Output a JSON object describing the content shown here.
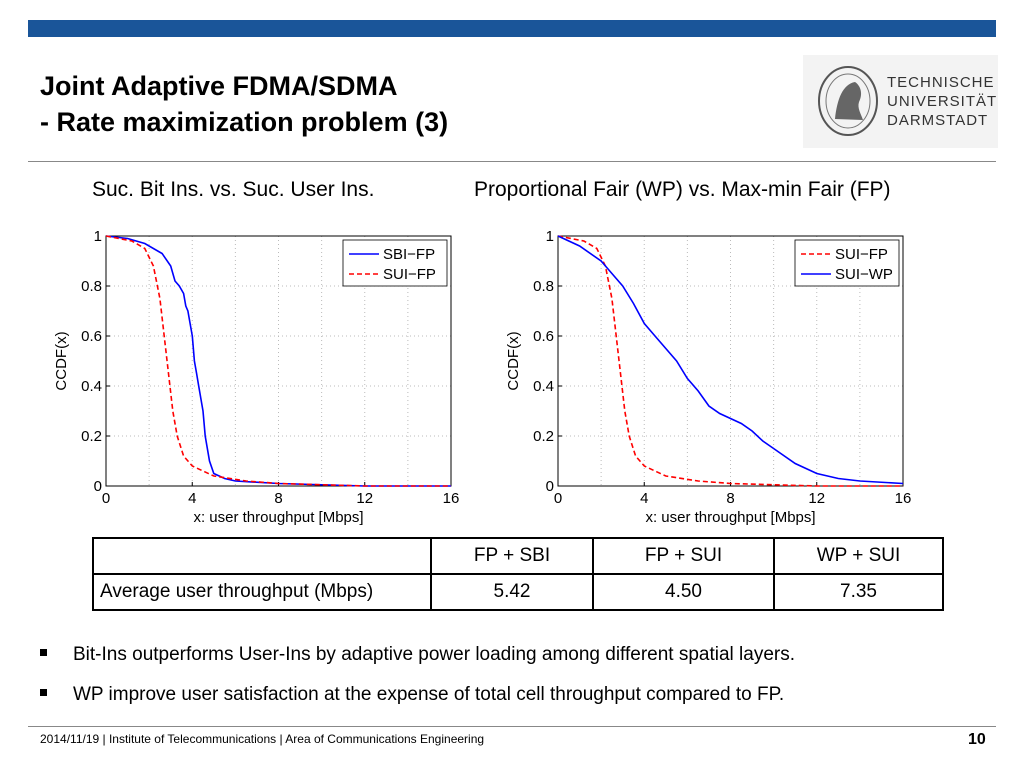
{
  "colors": {
    "header_bar": "#1a5599",
    "blue": "#0000ff",
    "red": "#ff0000"
  },
  "title": {
    "line1": "Joint Adaptive FDMA/SDMA",
    "line2": "- Rate maximization problem (3)"
  },
  "logo": {
    "line1": "TECHNISCHE",
    "line2": "UNIVERSITÄT",
    "line3": "DARMSTADT"
  },
  "subtitles": {
    "left": "Suc. Bit Ins. vs. Suc. User Ins.",
    "right": "Proportional Fair (WP) vs. Max-min Fair (FP)"
  },
  "chart_data": [
    {
      "type": "line",
      "xlabel": "x: user throughput [Mbps]",
      "ylabel": "CCDF(x)",
      "xlim": [
        0,
        16
      ],
      "ylim": [
        0,
        1
      ],
      "xticks": [
        "0",
        "4",
        "8",
        "12",
        "16"
      ],
      "yticks": [
        "0",
        "0.2",
        "0.4",
        "0.6",
        "0.8",
        "1"
      ],
      "grid": true,
      "legend_position": "top-right",
      "series": [
        {
          "name": "SBI−FP",
          "color": "#0000ff",
          "style": "solid",
          "points": [
            [
              0,
              1
            ],
            [
              1,
              0.99
            ],
            [
              1.8,
              0.97
            ],
            [
              2.6,
              0.93
            ],
            [
              3.0,
              0.88
            ],
            [
              3.2,
              0.82
            ],
            [
              3.4,
              0.8
            ],
            [
              3.6,
              0.77
            ],
            [
              3.7,
              0.72
            ],
            [
              3.8,
              0.7
            ],
            [
              3.9,
              0.65
            ],
            [
              4.0,
              0.6
            ],
            [
              4.1,
              0.5
            ],
            [
              4.2,
              0.45
            ],
            [
              4.3,
              0.4
            ],
            [
              4.5,
              0.3
            ],
            [
              4.6,
              0.2
            ],
            [
              4.8,
              0.1
            ],
            [
              5.0,
              0.05
            ],
            [
              5.5,
              0.03
            ],
            [
              6,
              0.02
            ],
            [
              8,
              0.01
            ],
            [
              12,
              0
            ],
            [
              16,
              0
            ]
          ]
        },
        {
          "name": "SUI−FP",
          "color": "#ff0000",
          "style": "dashed",
          "points": [
            [
              0,
              1
            ],
            [
              1.2,
              0.98
            ],
            [
              1.8,
              0.95
            ],
            [
              2.2,
              0.88
            ],
            [
              2.5,
              0.75
            ],
            [
              2.7,
              0.6
            ],
            [
              2.9,
              0.45
            ],
            [
              3.1,
              0.3
            ],
            [
              3.3,
              0.2
            ],
            [
              3.6,
              0.12
            ],
            [
              4.0,
              0.08
            ],
            [
              5.0,
              0.04
            ],
            [
              6.5,
              0.02
            ],
            [
              8,
              0.01
            ],
            [
              12,
              0
            ],
            [
              16,
              0
            ]
          ]
        }
      ]
    },
    {
      "type": "line",
      "xlabel": "x: user throughput [Mbps]",
      "ylabel": "CCDF(x)",
      "xlim": [
        0,
        16
      ],
      "ylim": [
        0,
        1
      ],
      "xticks": [
        "0",
        "4",
        "8",
        "12",
        "16"
      ],
      "yticks": [
        "0",
        "0.2",
        "0.4",
        "0.6",
        "0.8",
        "1"
      ],
      "grid": true,
      "legend_position": "top-right",
      "series": [
        {
          "name": "SUI−FP",
          "color": "#ff0000",
          "style": "dashed",
          "points": [
            [
              0,
              1
            ],
            [
              1.2,
              0.98
            ],
            [
              1.8,
              0.95
            ],
            [
              2.2,
              0.88
            ],
            [
              2.5,
              0.75
            ],
            [
              2.7,
              0.6
            ],
            [
              2.9,
              0.45
            ],
            [
              3.1,
              0.3
            ],
            [
              3.3,
              0.2
            ],
            [
              3.6,
              0.12
            ],
            [
              4.0,
              0.08
            ],
            [
              5.0,
              0.04
            ],
            [
              6.5,
              0.02
            ],
            [
              8,
              0.01
            ],
            [
              12,
              0
            ],
            [
              16,
              0
            ]
          ]
        },
        {
          "name": "SUI−WP",
          "color": "#0000ff",
          "style": "solid",
          "points": [
            [
              0,
              1
            ],
            [
              1,
              0.96
            ],
            [
              2,
              0.9
            ],
            [
              2.5,
              0.85
            ],
            [
              3,
              0.8
            ],
            [
              3.5,
              0.73
            ],
            [
              4,
              0.65
            ],
            [
              4.5,
              0.6
            ],
            [
              5,
              0.55
            ],
            [
              5.5,
              0.5
            ],
            [
              6,
              0.43
            ],
            [
              6.5,
              0.38
            ],
            [
              7,
              0.32
            ],
            [
              7.5,
              0.29
            ],
            [
              8,
              0.27
            ],
            [
              8.5,
              0.25
            ],
            [
              9,
              0.22
            ],
            [
              9.5,
              0.18
            ],
            [
              10,
              0.15
            ],
            [
              11,
              0.09
            ],
            [
              12,
              0.05
            ],
            [
              13,
              0.03
            ],
            [
              14,
              0.02
            ],
            [
              16,
              0.01
            ]
          ]
        }
      ]
    }
  ],
  "table": {
    "headers": [
      "",
      "FP + SBI",
      "FP + SUI",
      "WP + SUI"
    ],
    "row_label": "Average user throughput (Mbps)",
    "values": [
      "5.42",
      "4.50",
      "7.35"
    ]
  },
  "bullets": [
    "Bit-Ins outperforms User-Ins by adaptive power loading among different spatial layers.",
    "WP improve user satisfaction at the expense of  total cell throughput compared to FP."
  ],
  "footer": {
    "text": "2014/11/19  |  Institute of Telecommunications   |  Area of Communications Engineering",
    "page": "10"
  }
}
